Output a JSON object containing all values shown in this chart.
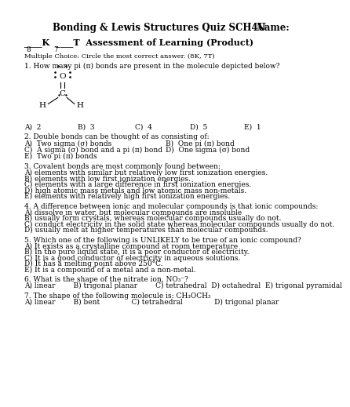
{
  "title_left": "Bonding & Lewis Structures Quiz SCH4U",
  "title_right": "Name:",
  "assess_line": "____K  ____T  Assessment of Learning (Product)",
  "marks_k": "8",
  "marks_t": "7",
  "mc_instr": "Multiple Choice: Circle the most correct answer. (8K, 7T)",
  "q1": "1. How many pi (π) bonds are present in the molecule depicted below?",
  "q1_ans": [
    "A)  2",
    "B)  3",
    "C)  4",
    "D)  5",
    "E)  1"
  ],
  "q2": "2. Double bonds can be thought of as consisting of:",
  "q2_opts": [
    [
      "A)  Two sigma (σ) bonds",
      "B)  One pi (π) bond"
    ],
    [
      "C)  A sigma (σ) bond and a pi (π) bond",
      "D)  One sigma (σ) bond"
    ],
    [
      "E)  Two pi (π) bonds",
      ""
    ]
  ],
  "q3": "3. Covalent bonds are most commonly found between:",
  "q3_opts": [
    "A) elements with similar but relatively low first ionization energies.",
    "B) elements with low first ionization energies.",
    "C) elements with a large difference in first ionization energies.",
    "D) high atomic mass metals and low atomic mass non-metals.",
    "E) elements with relatively high first ionization energies."
  ],
  "q4": "4. A difference between ionic and molecular compounds is that ionic compounds:",
  "q4_opts": [
    "A) dissolve in water, but molecular compounds are insoluble",
    "B) usually form crystals, whereas molecular compounds usually do not.",
    "C) conduct electricity in the solid state whereas molecular compounds usually do not.",
    "D) usually melt at higher temperatures than molecular compounds."
  ],
  "q5": "5. Which one of the following is UNLIKELY to be true of an ionic compound?",
  "q5_opts": [
    "A) It exists as a crystalline compound at room temperature",
    "B) In the pure liquid state, it is a poor conductor of electricity.",
    "C) It is a good conductor of electricity in aqueous solutions.",
    "D) It has a melting point above 250°C.",
    "E) It is a compound of a metal and a non-metal."
  ],
  "q6": "6. What is the shape of the nitrate ion, NO₃⁻?",
  "q6_ans": "A) linear        B) trigonal planar        C) tetrahedral  D) octahedral  E) trigonal pyramidal",
  "q7": "7. The shape of the following molecule is: CH₃OCH₃",
  "q7_ans": "A) linear        B) bent              C) tetrahedral              D) trigonal planar",
  "bg": "#ffffff",
  "fg": "#000000",
  "fs": 6.5,
  "fs_title": 8.5,
  "fs_assess": 8.0,
  "lh": 0.018
}
